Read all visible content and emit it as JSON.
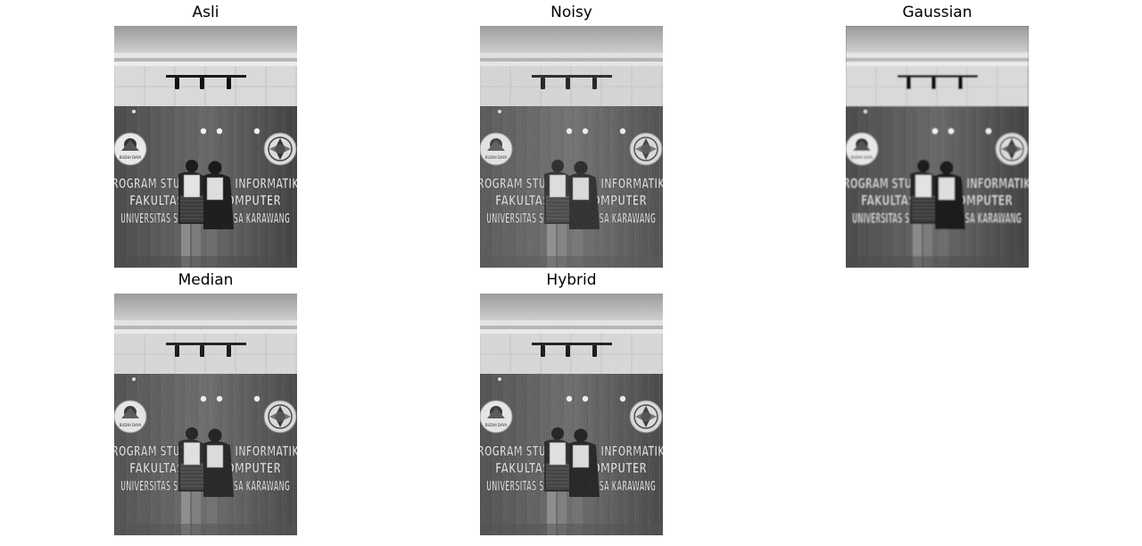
{
  "figure": {
    "panels": [
      {
        "id": "asli",
        "title": "Asli",
        "filter": "none"
      },
      {
        "id": "noisy",
        "title": "Noisy",
        "filter": "noise"
      },
      {
        "id": "gaussian",
        "title": "Gaussian",
        "filter": "gaussian"
      },
      {
        "id": "median",
        "title": "Median",
        "filter": "median"
      },
      {
        "id": "hybrid",
        "title": "Hybrid",
        "filter": "hybrid"
      }
    ],
    "image_text": {
      "line1": "ROGRAM STUDI TEKNIK INFORMATIK",
      "line2": "FAKULTAS ILMU KOMPUTER",
      "line3": "UNIVERSITAS SINGAPERBANGSA KARAWANG",
      "logo_text": "BUDHI DAYA"
    }
  }
}
